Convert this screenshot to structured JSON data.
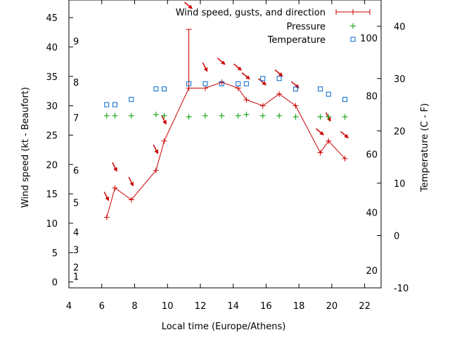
{
  "chart_data": {
    "type": "line",
    "title": "",
    "xlabel": "Local time (Europe/Athens)",
    "ylabel": "Wind speed (kt - Beaufort)",
    "y2label": "Temperature (C - F)",
    "xlim": [
      4,
      23
    ],
    "ylim": [
      -1,
      48
    ],
    "y2lim": [
      -10,
      45
    ],
    "x_ticks": [
      "4",
      "6",
      "8",
      "10",
      "12",
      "14",
      "16",
      "18",
      "20",
      "22"
    ],
    "y_ticks": [
      "0",
      "5",
      "10",
      "15",
      "20",
      "25",
      "30",
      "35",
      "40",
      "45"
    ],
    "beaufort_ticks": [
      {
        "value": 1,
        "label": "1"
      },
      {
        "value": 2.5,
        "label": "2"
      },
      {
        "value": 5.5,
        "label": "3"
      },
      {
        "value": 8.5,
        "label": "4"
      },
      {
        "value": 13.5,
        "label": "5"
      },
      {
        "value": 19,
        "label": "6"
      },
      {
        "value": 28,
        "label": "7"
      },
      {
        "value": 34,
        "label": "8"
      },
      {
        "value": 41,
        "label": "9"
      }
    ],
    "celsius_ticks": [
      "-10",
      "0",
      "10",
      "20",
      "30",
      "40"
    ],
    "fahrenheit_ticks": [
      {
        "value": 20,
        "label": "20"
      },
      {
        "value": 40,
        "label": "40"
      },
      {
        "value": 60,
        "label": "60"
      },
      {
        "value": 80,
        "label": "80"
      },
      {
        "value": 100,
        "label": "100"
      }
    ],
    "legend_position": "top-right",
    "series": [
      {
        "name": "Wind speed, gusts, and direction",
        "color": "#cc0000",
        "style": "line-with-plus-markers",
        "points": [
          {
            "x": 6.3,
            "y": 11
          },
          {
            "x": 6.8,
            "y": 16
          },
          {
            "x": 7.8,
            "y": 14
          },
          {
            "x": 9.3,
            "y": 19
          },
          {
            "x": 9.8,
            "y": 24
          },
          {
            "x": 11.3,
            "y": 33
          },
          {
            "x": 12.3,
            "y": 33
          },
          {
            "x": 13.3,
            "y": 34
          },
          {
            "x": 14.3,
            "y": 33
          },
          {
            "x": 14.8,
            "y": 31
          },
          {
            "x": 15.8,
            "y": 30
          },
          {
            "x": 16.8,
            "y": 32
          },
          {
            "x": 17.8,
            "y": 30
          },
          {
            "x": 19.3,
            "y": 22
          },
          {
            "x": 19.8,
            "y": 24
          },
          {
            "x": 20.8,
            "y": 21
          }
        ],
        "gusts": [
          {
            "x": 11.3,
            "low": 33,
            "high": 43
          }
        ],
        "direction_arrows": [
          {
            "x": 6.3,
            "y": 14.5,
            "angle_deg": 63
          },
          {
            "x": 6.8,
            "y": 19.5,
            "angle_deg": 63
          },
          {
            "x": 7.8,
            "y": 17.0,
            "angle_deg": 63
          },
          {
            "x": 9.3,
            "y": 22.5,
            "angle_deg": 63
          },
          {
            "x": 9.8,
            "y": 27.5,
            "angle_deg": 63
          },
          {
            "x": 11.3,
            "y": 47.0,
            "angle_deg": 40
          },
          {
            "x": 12.3,
            "y": 36.5,
            "angle_deg": 63
          },
          {
            "x": 13.3,
            "y": 37.5,
            "angle_deg": 40
          },
          {
            "x": 14.3,
            "y": 36.5,
            "angle_deg": 40
          },
          {
            "x": 14.8,
            "y": 35.0,
            "angle_deg": 40
          },
          {
            "x": 15.8,
            "y": 34.0,
            "angle_deg": 40
          },
          {
            "x": 16.8,
            "y": 35.5,
            "angle_deg": 40
          },
          {
            "x": 17.8,
            "y": 33.5,
            "angle_deg": 40
          },
          {
            "x": 19.3,
            "y": 25.5,
            "angle_deg": 40
          },
          {
            "x": 19.8,
            "y": 28.0,
            "angle_deg": 63
          },
          {
            "x": 20.8,
            "y": 25.0,
            "angle_deg": 40
          }
        ]
      },
      {
        "name": "Pressure",
        "color": "#009900",
        "style": "plus-markers",
        "axis": "y",
        "points": [
          {
            "x": 6.3,
            "y": 28.3
          },
          {
            "x": 6.8,
            "y": 28.3
          },
          {
            "x": 7.8,
            "y": 28.3
          },
          {
            "x": 9.3,
            "y": 28.5
          },
          {
            "x": 9.8,
            "y": 28.3
          },
          {
            "x": 11.3,
            "y": 28.1
          },
          {
            "x": 12.3,
            "y": 28.3
          },
          {
            "x": 13.3,
            "y": 28.3
          },
          {
            "x": 14.3,
            "y": 28.3
          },
          {
            "x": 14.8,
            "y": 28.5
          },
          {
            "x": 15.8,
            "y": 28.3
          },
          {
            "x": 16.8,
            "y": 28.3
          },
          {
            "x": 17.8,
            "y": 28.1
          },
          {
            "x": 19.3,
            "y": 28.1
          },
          {
            "x": 19.8,
            "y": 28.1
          },
          {
            "x": 20.8,
            "y": 28.1
          }
        ]
      },
      {
        "name": "Temperature",
        "color": "#0066cc",
        "style": "square-markers",
        "axis": "y2",
        "points": [
          {
            "x": 6.3,
            "y": 25
          },
          {
            "x": 6.8,
            "y": 25
          },
          {
            "x": 7.8,
            "y": 26
          },
          {
            "x": 9.3,
            "y": 28
          },
          {
            "x": 9.8,
            "y": 28
          },
          {
            "x": 11.3,
            "y": 29
          },
          {
            "x": 12.3,
            "y": 29
          },
          {
            "x": 13.3,
            "y": 29
          },
          {
            "x": 14.3,
            "y": 29
          },
          {
            "x": 14.8,
            "y": 29
          },
          {
            "x": 15.8,
            "y": 30
          },
          {
            "x": 16.8,
            "y": 30
          },
          {
            "x": 17.8,
            "y": 28
          },
          {
            "x": 19.3,
            "y": 28
          },
          {
            "x": 19.8,
            "y": 27
          },
          {
            "x": 20.8,
            "y": 26
          }
        ]
      }
    ]
  }
}
